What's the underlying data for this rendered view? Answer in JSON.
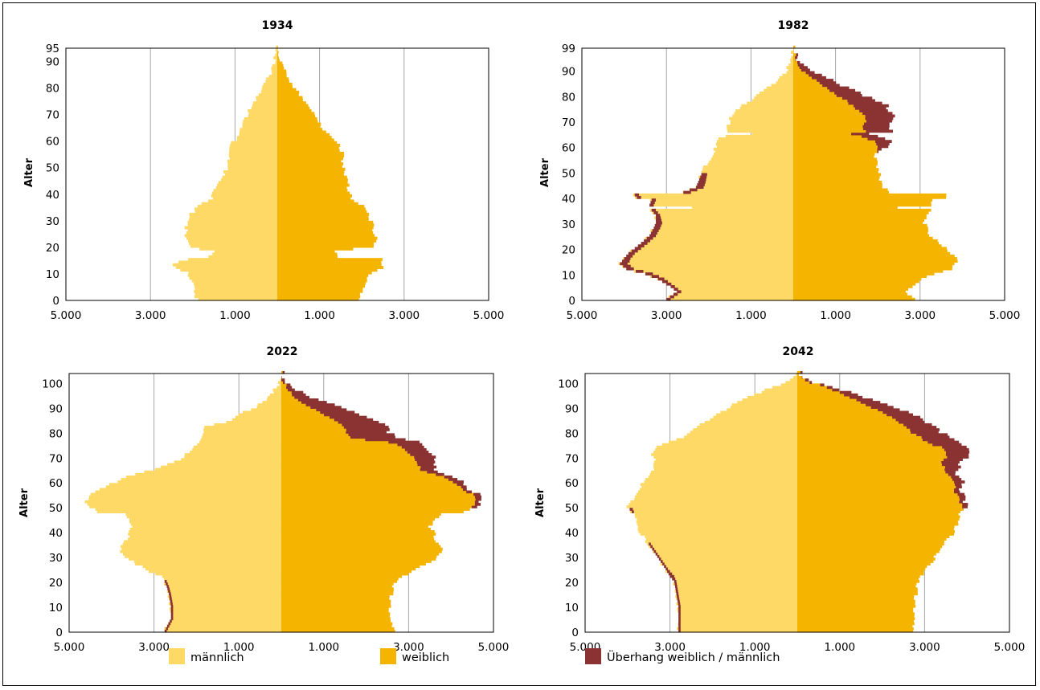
{
  "colors": {
    "male": "#FFD966",
    "female": "#F4B400",
    "surplus": "#8B3232",
    "grid": "#A6A6A6"
  },
  "legend": {
    "male": "männlich",
    "female": "weiblich",
    "surplus": "Überhang weiblich / männlich"
  },
  "chart_data": [
    {
      "type": "bar",
      "title": "1934",
      "ylabel": "Alter",
      "x_tick_labels": [
        "5.000",
        "3.000",
        "1.000",
        "1.000",
        "3.000",
        "5.000"
      ],
      "y_ticks": [
        0,
        10,
        20,
        30,
        40,
        50,
        60,
        70,
        80,
        90,
        95
      ],
      "ylim": [
        0,
        95
      ],
      "xlim": [
        -5000,
        5000
      ],
      "age_keypoints": [
        0,
        5,
        10,
        12,
        13,
        14,
        15,
        16,
        18,
        20,
        22,
        25,
        28,
        30,
        32,
        35,
        38,
        40,
        45,
        50,
        55,
        58,
        60,
        63,
        65,
        68,
        70,
        73,
        75,
        78,
        80,
        83,
        85,
        88,
        90,
        93,
        95
      ],
      "male": [
        1900,
        2000,
        2100,
        2400,
        2450,
        2300,
        2150,
        1600,
        1500,
        2100,
        2150,
        2150,
        2150,
        2100,
        2050,
        1850,
        1550,
        1500,
        1350,
        1150,
        1150,
        1150,
        1000,
        920,
        850,
        760,
        690,
        590,
        510,
        410,
        330,
        230,
        170,
        110,
        60,
        30,
        12
      ],
      "female": [
        1950,
        2050,
        2200,
        2500,
        2500,
        2500,
        2450,
        1400,
        1400,
        2250,
        2350,
        2300,
        2250,
        2200,
        2150,
        2050,
        1750,
        1700,
        1650,
        1550,
        1550,
        1450,
        1300,
        1150,
        1050,
        950,
        850,
        720,
        620,
        490,
        390,
        270,
        200,
        130,
        70,
        35,
        15
      ]
    },
    {
      "type": "bar",
      "title": "1982",
      "ylabel": "Alter",
      "x_tick_labels": [
        "5.000",
        "3.000",
        "1.000",
        "1.000",
        "3.000",
        "5.000"
      ],
      "y_ticks": [
        0,
        10,
        20,
        30,
        40,
        50,
        60,
        70,
        80,
        90,
        99
      ],
      "ylim": [
        0,
        99
      ],
      "xlim": [
        -5000,
        5000
      ],
      "age_keypoints": [
        0,
        3,
        5,
        8,
        10,
        12,
        14,
        16,
        18,
        20,
        22,
        25,
        28,
        30,
        33,
        35,
        36,
        37,
        39,
        40,
        41,
        42,
        44,
        48,
        52,
        55,
        57,
        60,
        62,
        63,
        64,
        65,
        66,
        68,
        70,
        72,
        74,
        76,
        78,
        80,
        83,
        85,
        88,
        90,
        93,
        95,
        99
      ],
      "male": [
        3000,
        2750,
        2900,
        3200,
        3500,
        3950,
        4100,
        4000,
        3900,
        3750,
        3600,
        3400,
        3300,
        3250,
        3250,
        3350,
        2350,
        3400,
        3350,
        3700,
        3750,
        2600,
        2300,
        2200,
        2100,
        1950,
        1900,
        1850,
        1850,
        1800,
        1600,
        1000,
        1550,
        1550,
        1500,
        1450,
        1350,
        1200,
        1000,
        850,
        600,
        450,
        250,
        150,
        70,
        30,
        8
      ],
      "female": [
        2900,
        2650,
        2800,
        3050,
        3300,
        3750,
        3850,
        3850,
        3750,
        3600,
        3450,
        3250,
        3150,
        3100,
        3150,
        3250,
        2500,
        3300,
        3250,
        3600,
        3650,
        2300,
        2100,
        2050,
        2000,
        1950,
        1950,
        1950,
        1900,
        1750,
        1650,
        1400,
        1700,
        1650,
        1700,
        1700,
        1550,
        1400,
        1250,
        1050,
        800,
        600,
        350,
        200,
        100,
        40,
        10
      ],
      "surplus": [
        0,
        0,
        0,
        0,
        0,
        0,
        0,
        0,
        0,
        0,
        0,
        0,
        0,
        0,
        0,
        0,
        0,
        0,
        0,
        0,
        0,
        0,
        0,
        0,
        0,
        0,
        0,
        200,
        400,
        450,
        400,
        400,
        600,
        600,
        600,
        700,
        700,
        800,
        700,
        650,
        500,
        400,
        300,
        180,
        80,
        30,
        5
      ]
    },
    {
      "type": "bar",
      "title": "2022",
      "ylabel": "Alter",
      "x_tick_labels": [
        "5.000",
        "3.000",
        "1.000",
        "1.000",
        "3.000",
        "5.000"
      ],
      "y_ticks": [
        0,
        10,
        20,
        30,
        40,
        50,
        60,
        70,
        80,
        90,
        100
      ],
      "ylim": [
        0,
        104
      ],
      "xlim": [
        -5000,
        5000
      ],
      "age_keypoints": [
        0,
        5,
        10,
        15,
        18,
        20,
        22,
        25,
        28,
        30,
        33,
        35,
        38,
        40,
        42,
        45,
        47,
        48,
        50,
        52,
        55,
        57,
        60,
        62,
        65,
        68,
        70,
        73,
        75,
        76,
        77,
        78,
        80,
        82,
        84,
        86,
        88,
        90,
        93,
        95,
        98,
        100,
        103
      ],
      "male": [
        2750,
        2600,
        2600,
        2650,
        2700,
        2750,
        2850,
        3200,
        3500,
        3700,
        3800,
        3700,
        3600,
        3550,
        3500,
        3600,
        3700,
        4300,
        4500,
        4600,
        4500,
        4300,
        3900,
        3700,
        3000,
        2500,
        2300,
        2100,
        2000,
        1900,
        1900,
        1900,
        1800,
        1800,
        1300,
        1100,
        900,
        600,
        350,
        250,
        120,
        50,
        15
      ],
      "female": [
        2700,
        2550,
        2550,
        2600,
        2650,
        2700,
        2850,
        3200,
        3500,
        3700,
        3800,
        3700,
        3600,
        3600,
        3500,
        3600,
        3800,
        4300,
        4500,
        4600,
        4500,
        4300,
        4000,
        3800,
        3300,
        3200,
        3100,
        2900,
        2750,
        2500,
        2000,
        1600,
        1550,
        1500,
        1350,
        1100,
        900,
        700,
        400,
        250,
        120,
        50,
        15
      ],
      "surplus": [
        0,
        0,
        0,
        0,
        0,
        0,
        0,
        0,
        0,
        0,
        0,
        0,
        0,
        0,
        0,
        0,
        0,
        0,
        80,
        100,
        150,
        150,
        200,
        200,
        300,
        400,
        500,
        500,
        600,
        700,
        900,
        1100,
        1000,
        1000,
        1000,
        850,
        800,
        700,
        500,
        300,
        150,
        50,
        10
      ]
    },
    {
      "type": "bar",
      "title": "2042",
      "ylabel": "Alter",
      "x_tick_labels": [
        "5.000",
        "3.000",
        "1.000",
        "1.000",
        "3.000",
        "5.000"
      ],
      "y_ticks": [
        0,
        10,
        20,
        30,
        40,
        50,
        60,
        70,
        80,
        90,
        100
      ],
      "ylim": [
        0,
        104
      ],
      "xlim": [
        -5000,
        5000
      ],
      "age_keypoints": [
        0,
        5,
        10,
        15,
        20,
        22,
        25,
        30,
        35,
        40,
        45,
        48,
        50,
        52,
        55,
        58,
        60,
        63,
        65,
        68,
        70,
        72,
        74,
        75,
        76,
        78,
        80,
        82,
        85,
        88,
        90,
        93,
        95,
        98,
        100,
        103
      ],
      "male": [
        2800,
        2800,
        2800,
        2850,
        2900,
        3000,
        3100,
        3300,
        3500,
        3700,
        3800,
        3900,
        4000,
        3900,
        3800,
        3700,
        3650,
        3500,
        3400,
        3350,
        3400,
        3400,
        3300,
        3200,
        3000,
        2700,
        2500,
        2350,
        2100,
        1800,
        1600,
        1300,
        1000,
        600,
        250,
        50
      ],
      "female": [
        2750,
        2750,
        2750,
        2800,
        2850,
        2900,
        3050,
        3250,
        3450,
        3700,
        3800,
        3850,
        3900,
        3850,
        3750,
        3700,
        3650,
        3550,
        3500,
        3400,
        3500,
        3500,
        3400,
        3200,
        3050,
        2900,
        2700,
        2600,
        2300,
        2000,
        1750,
        1400,
        1100,
        700,
        300,
        60
      ],
      "surplus": [
        0,
        0,
        0,
        0,
        0,
        0,
        0,
        0,
        0,
        0,
        0,
        0,
        80,
        100,
        150,
        180,
        200,
        200,
        300,
        400,
        500,
        550,
        600,
        700,
        700,
        700,
        700,
        650,
        650,
        600,
        500,
        400,
        300,
        150,
        60,
        10
      ]
    }
  ]
}
